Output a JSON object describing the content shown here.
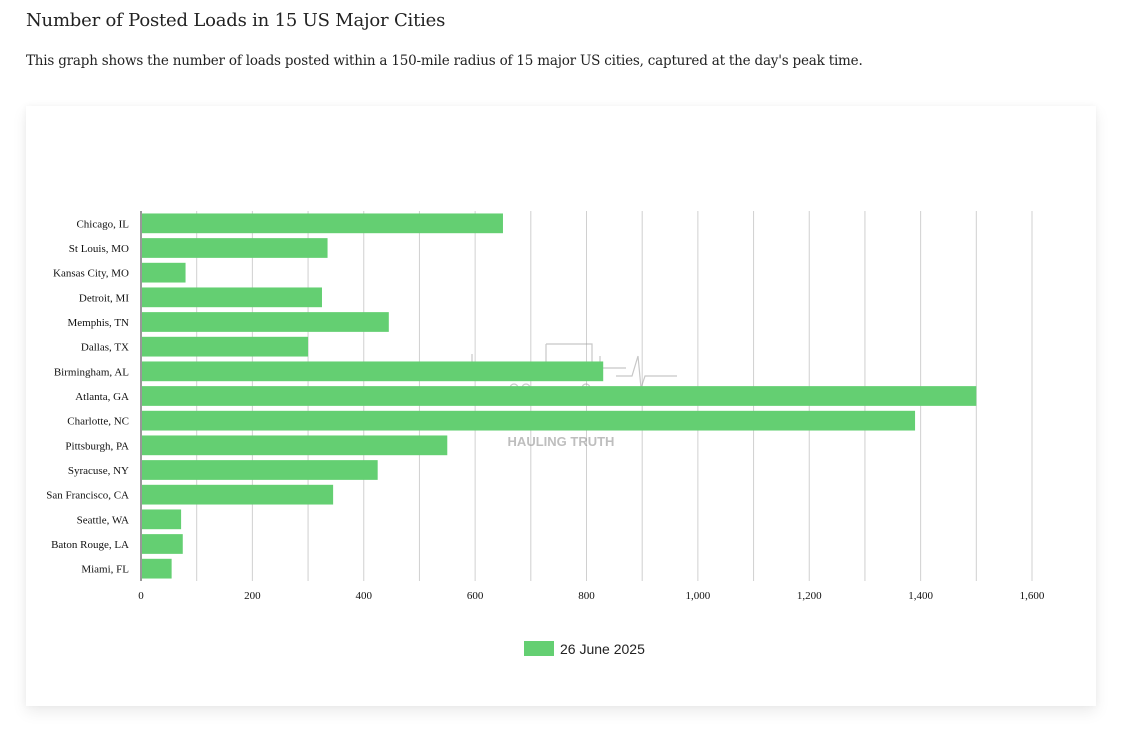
{
  "page": {
    "title": "Number of Posted Loads in 15 US Major Cities",
    "description": "This graph shows the number of loads posted within a 150-mile radius of 15 major US cities, captured at the day's peak time."
  },
  "watermark": {
    "text": "HAULING TRUTH"
  },
  "chart_data": {
    "type": "bar",
    "orientation": "horizontal",
    "categories": [
      "Chicago, IL",
      "St Louis, MO",
      "Kansas City, MO",
      "Detroit, MI",
      "Memphis, TN",
      "Dallas, TX",
      "Birmingham, AL",
      "Atlanta, GA",
      "Charlotte, NC",
      "Pittsburgh, PA",
      "Syracuse, NY",
      "San Francisco, CA",
      "Seattle, WA",
      "Baton Rouge, LA",
      "Miami, FL"
    ],
    "series": [
      {
        "name": "26 June 2025",
        "color": "#64cf72",
        "values": [
          650,
          335,
          80,
          325,
          445,
          300,
          830,
          1500,
          1390,
          550,
          425,
          345,
          72,
          75,
          55
        ]
      }
    ],
    "xlim": [
      0,
      1600
    ],
    "xticks": [
      0,
      200,
      400,
      600,
      800,
      1000,
      1200,
      1400,
      1600
    ],
    "xtick_labels": [
      "0",
      "200",
      "400",
      "600",
      "800",
      "1,000",
      "1,200",
      "1,400",
      "1,600"
    ],
    "grid": true,
    "legend": "bottom-center"
  }
}
